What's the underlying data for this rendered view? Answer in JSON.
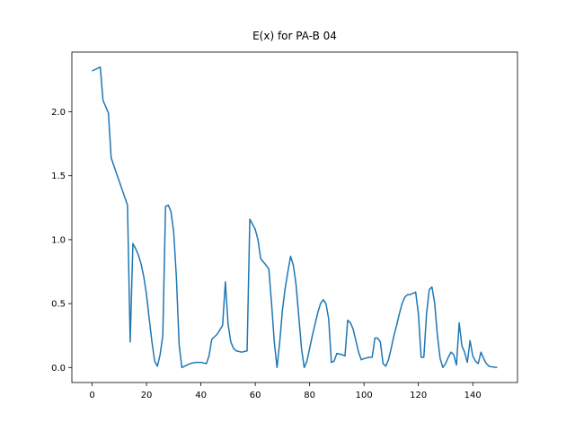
{
  "chart_data": {
    "type": "line",
    "title": "E(x) for PA-B 04",
    "series": [
      {
        "color": "#1f77b4",
        "x": [
          0,
          3,
          4,
          6,
          7,
          13,
          14,
          15,
          16,
          17,
          18,
          19,
          20,
          21,
          22,
          23,
          24,
          25,
          26,
          27,
          28,
          29,
          30,
          31,
          32,
          33,
          34,
          35,
          36,
          38,
          40,
          42,
          43,
          44,
          46,
          48,
          49,
          50,
          51,
          52,
          53,
          55,
          57,
          58,
          60,
          61,
          62,
          64,
          65,
          66,
          67,
          68,
          69,
          70,
          71,
          72,
          73,
          74,
          75,
          76,
          77,
          78,
          79,
          80,
          81,
          82,
          83,
          84,
          85,
          86,
          87,
          88,
          89,
          90,
          92,
          93,
          94,
          95,
          96,
          97,
          98,
          99,
          100,
          102,
          103,
          104,
          105,
          106,
          107,
          108,
          109,
          110,
          111,
          112,
          113,
          114,
          115,
          116,
          117,
          118,
          119,
          120,
          121,
          122,
          123,
          124,
          125,
          126,
          127,
          128,
          129,
          130,
          131,
          132,
          133,
          134,
          135,
          136,
          137,
          138,
          139,
          140,
          141,
          142,
          143,
          144,
          145,
          146,
          147,
          149
        ],
        "values": [
          2.32,
          2.35,
          2.09,
          1.99,
          1.64,
          1.27,
          0.2,
          0.97,
          0.93,
          0.88,
          0.81,
          0.71,
          0.57,
          0.38,
          0.2,
          0.05,
          0.01,
          0.1,
          0.25,
          1.26,
          1.27,
          1.22,
          1.06,
          0.7,
          0.18,
          0.0,
          0.01,
          0.02,
          0.03,
          0.04,
          0.04,
          0.03,
          0.09,
          0.22,
          0.26,
          0.33,
          0.67,
          0.34,
          0.2,
          0.15,
          0.13,
          0.12,
          0.13,
          1.16,
          1.08,
          1.0,
          0.85,
          0.8,
          0.77,
          0.5,
          0.2,
          0.0,
          0.2,
          0.45,
          0.62,
          0.75,
          0.87,
          0.8,
          0.65,
          0.4,
          0.15,
          0.0,
          0.05,
          0.15,
          0.25,
          0.34,
          0.43,
          0.5,
          0.53,
          0.5,
          0.38,
          0.04,
          0.05,
          0.11,
          0.1,
          0.09,
          0.37,
          0.35,
          0.3,
          0.21,
          0.12,
          0.06,
          0.07,
          0.08,
          0.08,
          0.23,
          0.23,
          0.2,
          0.03,
          0.01,
          0.06,
          0.15,
          0.25,
          0.33,
          0.42,
          0.5,
          0.55,
          0.57,
          0.57,
          0.58,
          0.59,
          0.42,
          0.08,
          0.08,
          0.42,
          0.61,
          0.63,
          0.5,
          0.25,
          0.07,
          0.0,
          0.03,
          0.08,
          0.12,
          0.1,
          0.02,
          0.35,
          0.17,
          0.12,
          0.04,
          0.21,
          0.09,
          0.05,
          0.03,
          0.12,
          0.07,
          0.03,
          0.01,
          0.005,
          0.0
        ]
      }
    ],
    "xlim": [
      -7.45,
      156.45
    ],
    "xticks": [
      0,
      20,
      40,
      60,
      80,
      100,
      120,
      140
    ],
    "ylim": [
      -0.1175,
      2.4675
    ],
    "yticks": [
      {
        "value": 0,
        "label": "0.0"
      },
      0.5,
      {
        "value": 1,
        "label": "1.0"
      },
      1.5,
      {
        "value": 2,
        "label": "2.0"
      }
    ],
    "grid": false
  }
}
